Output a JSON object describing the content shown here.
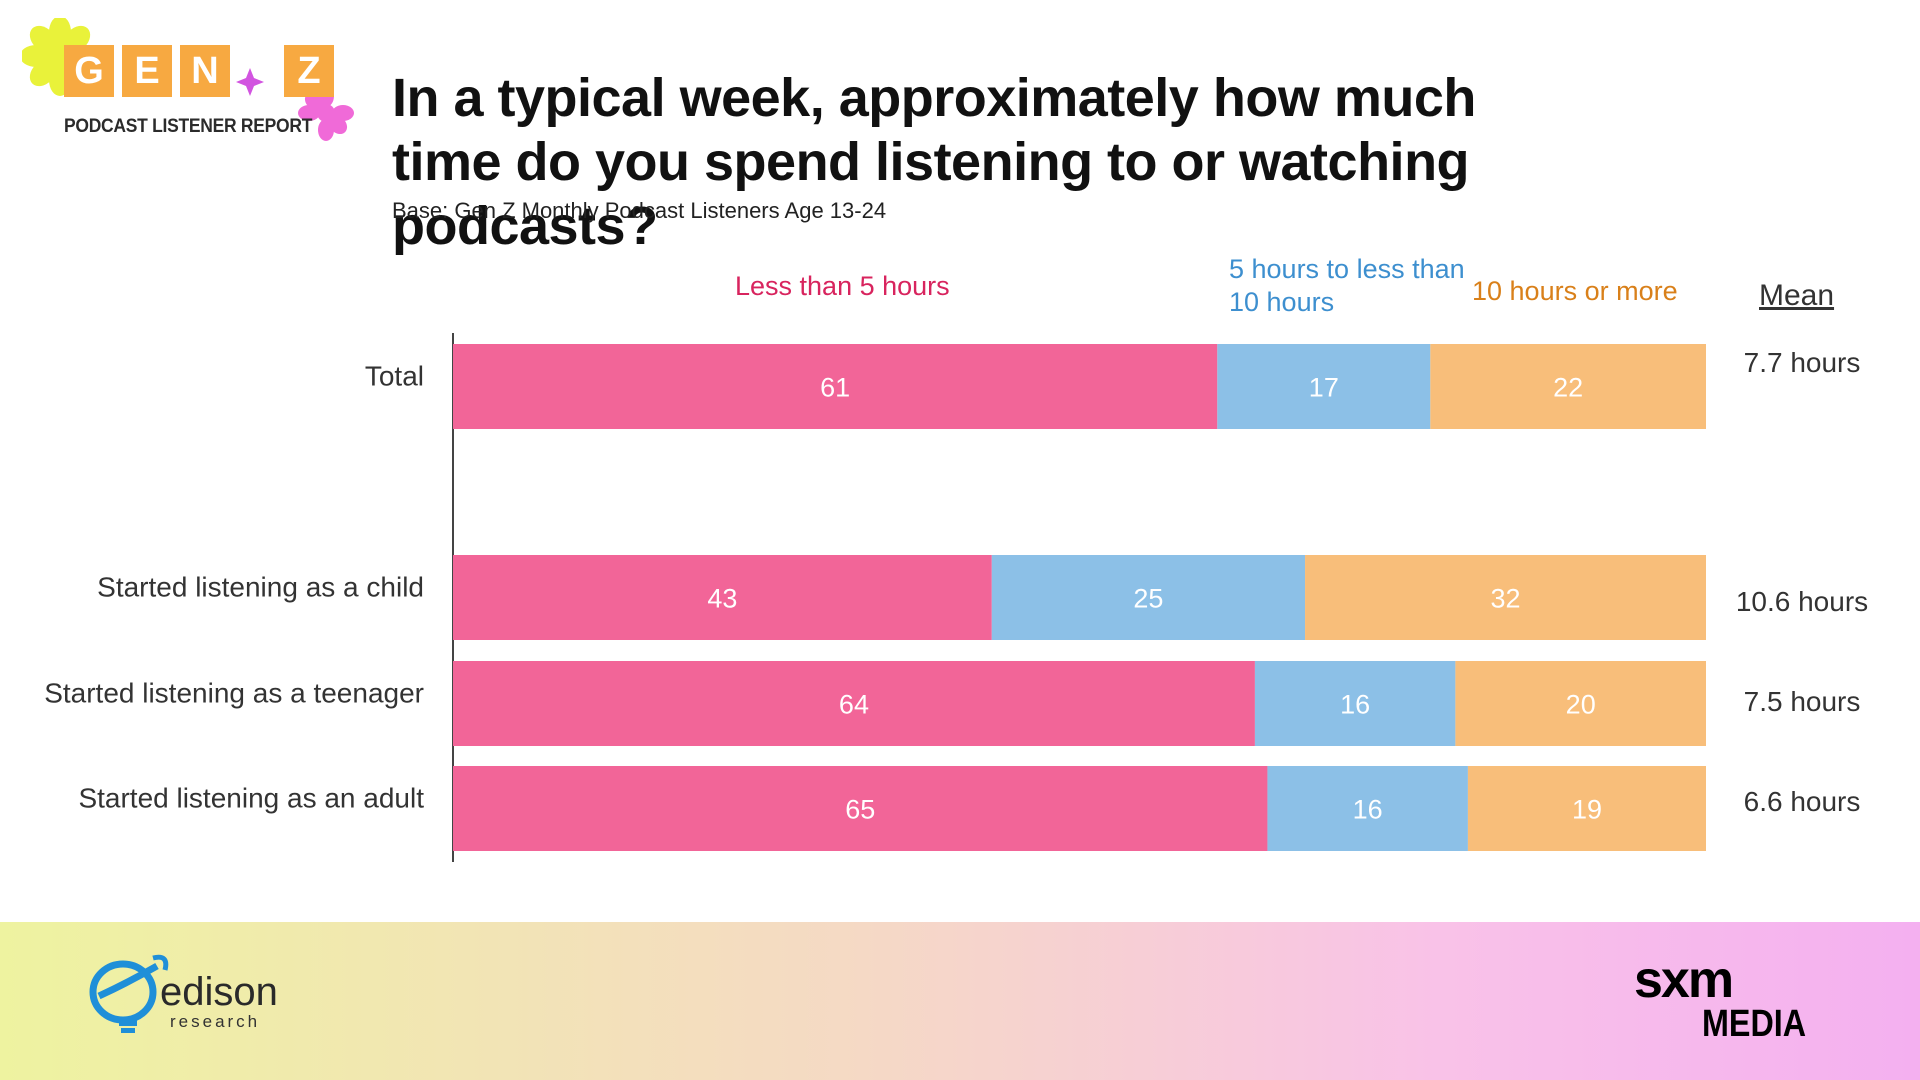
{
  "logo": {
    "letters": [
      "G",
      "E",
      "N",
      "Z"
    ],
    "subtitle": "PODCAST LISTENER REPORT",
    "colors": {
      "tile": "#f7a941",
      "flower_yellow": "#e9f23a",
      "flower_pink": "#f06ad8",
      "sparkle": "#d254e0"
    }
  },
  "title": "In a typical week, approximately how much time do you spend listening to or watching podcasts?",
  "subtitle": "Base: Gen Z Monthly Podcast Listeners Age 13-24",
  "mean_header": "Mean",
  "chart_data": {
    "type": "bar",
    "orientation": "horizontal",
    "stacked": true,
    "unit": "percent",
    "xlim": [
      0,
      100
    ],
    "categories": [
      "Total",
      "Started listening as a child",
      "Started listening as a teenager",
      "Started listening as an adult"
    ],
    "series": [
      {
        "name": "Less than 5 hours",
        "color": "#f26598",
        "values": [
          61,
          43,
          64,
          65
        ]
      },
      {
        "name": "5 hours to less than 10 hours",
        "color": "#8cc0e7",
        "values": [
          17,
          25,
          16,
          16
        ]
      },
      {
        "name": "10 hours or more",
        "color": "#f8be7a",
        "values": [
          22,
          32,
          20,
          19
        ]
      }
    ],
    "legend_text_colors": [
      "#d8245e",
      "#3d8fcf",
      "#d9801a"
    ],
    "data_labels": true,
    "mean": [
      "7.7 hours",
      "10.6 hours",
      "7.5 hours",
      "6.6 hours"
    ],
    "grid": false,
    "legend_position": "top"
  },
  "footer": {
    "edison_name": "edison",
    "edison_sub": "research",
    "sxm": "sxm",
    "sxm_media": "MEDIA",
    "colors": {
      "edison_blue": "#1f8fd8"
    }
  }
}
